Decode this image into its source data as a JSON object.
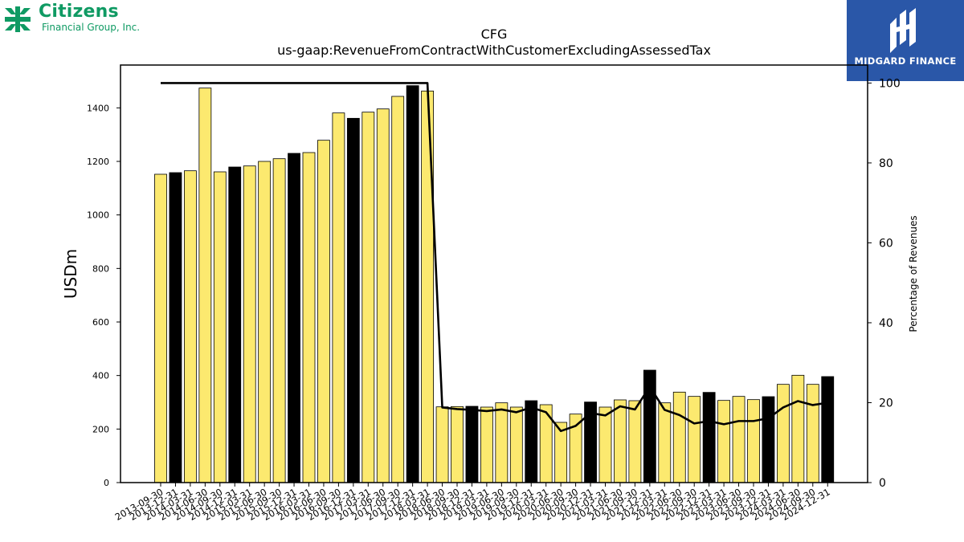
{
  "logos": {
    "left": {
      "brand": "Citizens",
      "sub": "Financial Group, Inc."
    },
    "right": {
      "name": "MIDGARD FINANCE"
    }
  },
  "colors": {
    "bar_default": "#fce96f",
    "bar_highlight": "#000000",
    "line": "#000000",
    "brand_green": "#0f9a63",
    "brand_blue": "#2a57a8"
  },
  "chart_data": {
    "type": "bar",
    "title": "CFG",
    "subtitle": "us-gaap:RevenueFromContractWithCustomerExcludingAssessedTax",
    "ylabel": "USDm",
    "y2label": "Percentage of Revenues",
    "ylim": [
      0,
      1560
    ],
    "y2lim": [
      0,
      104.5
    ],
    "yticks": [
      0,
      200,
      400,
      600,
      800,
      1000,
      1200,
      1400
    ],
    "y2ticks": [
      0,
      20,
      40,
      60,
      80,
      100
    ],
    "categories": [
      "2013-09-30",
      "2013-12-31",
      "2014-03-31",
      "2014-06-30",
      "2014-09-30",
      "2014-12-31",
      "2015-03-31",
      "2015-06-30",
      "2015-09-30",
      "2015-12-31",
      "2016-03-31",
      "2016-06-30",
      "2016-09-30",
      "2016-12-31",
      "2017-03-31",
      "2017-06-30",
      "2017-09-30",
      "2017-12-31",
      "2018-03-31",
      "2018-06-30",
      "2018-09-30",
      "2018-12-31",
      "2019-03-31",
      "2019-06-30",
      "2019-09-30",
      "2019-12-31",
      "2020-03-31",
      "2020-06-30",
      "2020-09-30",
      "2020-12-31",
      "2021-03-31",
      "2021-06-30",
      "2021-09-30",
      "2021-12-31",
      "2022-03-31",
      "2022-06-30",
      "2022-09-30",
      "2022-12-31",
      "2023-03-31",
      "2023-06-30",
      "2023-09-30",
      "2023-12-31",
      "2024-03-31",
      "2024-06-30",
      "2024-09-30",
      "2024-12-31"
    ],
    "series": [
      {
        "type": "bar",
        "values": [
          1152,
          1158,
          1165,
          1474,
          1161,
          1179,
          1183,
          1200,
          1210,
          1230,
          1233,
          1279,
          1381,
          1361,
          1384,
          1396,
          1443,
          1483,
          1463,
          283,
          284,
          285,
          282,
          298,
          282,
          306,
          291,
          225,
          256,
          301,
          282,
          309,
          306,
          420,
          298,
          338,
          322,
          337,
          307,
          322,
          310,
          321,
          367,
          401,
          367,
          396
        ],
        "highlight": [
          false,
          true,
          false,
          false,
          false,
          true,
          false,
          false,
          false,
          true,
          false,
          false,
          false,
          true,
          false,
          false,
          false,
          true,
          false,
          false,
          false,
          true,
          false,
          false,
          false,
          true,
          false,
          false,
          false,
          true,
          false,
          false,
          false,
          true,
          false,
          false,
          false,
          true,
          false,
          false,
          false,
          true,
          false,
          false,
          false,
          true
        ]
      },
      {
        "type": "line",
        "axis": "right",
        "values": [
          100,
          100,
          100,
          100,
          100,
          100,
          100,
          100,
          100,
          100,
          100,
          100,
          100,
          100,
          100,
          100,
          100,
          100,
          100,
          18.8,
          18.4,
          18.2,
          17.9,
          18.3,
          17.6,
          18.8,
          17.6,
          12.9,
          14.2,
          17.4,
          16.8,
          19.1,
          18.3,
          24.0,
          18.2,
          16.9,
          14.8,
          15.4,
          14.6,
          15.4,
          15.4,
          16.1,
          18.8,
          20.4,
          19.4,
          20.0
        ]
      }
    ]
  }
}
